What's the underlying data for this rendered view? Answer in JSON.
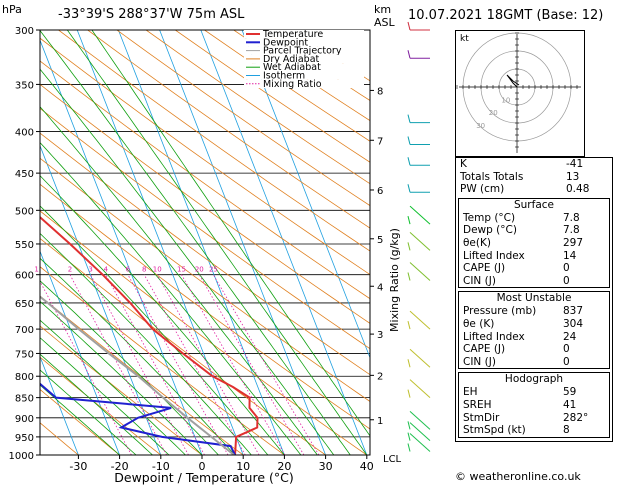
{
  "header": {
    "pressure_unit": "hPa",
    "location": "-33°39'S  288°37'W  75m  ASL",
    "km_label": "km",
    "asl_label": "ASL",
    "datetime": "10.07.2021  18GMT  (Base: 12)"
  },
  "axes": {
    "xlabel": "Dewpoint / Temperature (°C)",
    "mixing_ratio_label": "Mixing Ratio (g/kg)",
    "lcl_label": "LCL",
    "pressure_ticks": [
      "300",
      "350",
      "400",
      "450",
      "500",
      "550",
      "600",
      "650",
      "700",
      "750",
      "800",
      "850",
      "900",
      "950",
      "1000"
    ],
    "temp_ticks": [
      "-30",
      "-20",
      "-10",
      "0",
      "10",
      "20",
      "30",
      "40"
    ],
    "km_ticks": [
      "8",
      "7",
      "6",
      "5",
      "4",
      "3",
      "2",
      "1"
    ],
    "mixing_ratio_ticks": [
      "1",
      "2",
      "3",
      "4",
      "6",
      "8",
      "10",
      "15",
      "20",
      "25"
    ]
  },
  "legend": [
    "Temperature",
    "Dewpoint",
    "Parcel Trajectory",
    "Dry Adiabat",
    "Wet Adiabat",
    "Isotherm",
    "Mixing Ratio"
  ],
  "colors": {
    "temperature": "#e03030",
    "dewpoint": "#2020d0",
    "parcel": "#a0a0a0",
    "dry_adiabat": "#e08020",
    "wet_adiabat": "#10a010",
    "isotherm": "#20a0e0",
    "mixing_ratio": "#e020a0"
  },
  "chart_data": {
    "type": "line",
    "xlabel": "Dewpoint / Temperature (°C)",
    "ylabel": "hPa",
    "xlim": [
      -40,
      40
    ],
    "ylim": [
      1000,
      300
    ],
    "skew": "skew-T log-p",
    "series": [
      {
        "name": "Temperature",
        "points": [
          [
            1000,
            8
          ],
          [
            975,
            9
          ],
          [
            950,
            10
          ],
          [
            925,
            16
          ],
          [
            900,
            17
          ],
          [
            875,
            16
          ],
          [
            850,
            17
          ],
          [
            825,
            14
          ],
          [
            800,
            10
          ],
          [
            750,
            5
          ],
          [
            700,
            0
          ],
          [
            650,
            -3
          ],
          [
            600,
            -7
          ],
          [
            550,
            -12
          ],
          [
            500,
            -18
          ],
          [
            450,
            -23
          ],
          [
            400,
            -30
          ],
          [
            350,
            -39
          ],
          [
            300,
            -48
          ]
        ]
      },
      {
        "name": "Dewpoint",
        "points": [
          [
            1000,
            8
          ],
          [
            975,
            7.8
          ],
          [
            950,
            -8
          ],
          [
            925,
            -17
          ],
          [
            900,
            -12
          ],
          [
            875,
            -3
          ],
          [
            850,
            -30
          ],
          [
            800,
            -34
          ],
          [
            750,
            -37
          ],
          [
            700,
            -42
          ],
          [
            650,
            -51
          ],
          [
            600,
            -60
          ],
          [
            550,
            -59
          ],
          [
            500,
            -60
          ],
          [
            450,
            -65
          ],
          [
            400,
            -70
          ],
          [
            350,
            -78
          ],
          [
            300,
            -85
          ]
        ]
      },
      {
        "name": "Parcel Trajectory",
        "points": [
          [
            1000,
            7.8
          ],
          [
            950,
            4
          ],
          [
            900,
            0
          ],
          [
            850,
            -4
          ],
          [
            800,
            -8
          ],
          [
            750,
            -13
          ],
          [
            700,
            -18
          ],
          [
            650,
            -23
          ],
          [
            600,
            -29
          ],
          [
            550,
            -35
          ],
          [
            500,
            -42
          ],
          [
            450,
            -49
          ],
          [
            400,
            -57
          ],
          [
            350,
            -65
          ],
          [
            300,
            -74
          ]
        ]
      }
    ]
  },
  "hodograph": {
    "label": "kt",
    "ring_labels": [
      "10",
      "20",
      "30"
    ]
  },
  "indices": {
    "rows": [
      {
        "label": "K",
        "value": "-41"
      },
      {
        "label": "Totals Totals",
        "value": "13"
      },
      {
        "label": "PW (cm)",
        "value": "0.48"
      }
    ]
  },
  "surface": {
    "title": "Surface",
    "rows": [
      {
        "label": "Temp (°C)",
        "value": "7.8"
      },
      {
        "label": "Dewp (°C)",
        "value": "7.8"
      },
      {
        "label": "θe(K)",
        "value": "297"
      },
      {
        "label": "Lifted Index",
        "value": "14"
      },
      {
        "label": "CAPE (J)",
        "value": "0"
      },
      {
        "label": "CIN (J)",
        "value": "0"
      }
    ]
  },
  "most_unstable": {
    "title": "Most Unstable",
    "rows": [
      {
        "label": "Pressure (mb)",
        "value": "837"
      },
      {
        "label": "θe (K)",
        "value": "304"
      },
      {
        "label": "Lifted Index",
        "value": "24"
      },
      {
        "label": "CAPE (J)",
        "value": "0"
      },
      {
        "label": "CIN (J)",
        "value": "0"
      }
    ]
  },
  "hodograph_table": {
    "title": "Hodograph",
    "rows": [
      {
        "label": "EH",
        "value": "59"
      },
      {
        "label": "SREH",
        "value": "41"
      },
      {
        "label": "StmDir",
        "value": "282°"
      },
      {
        "label": "StmSpd (kt)",
        "value": "8"
      }
    ]
  },
  "copyright": "© weatheronline.co.uk"
}
